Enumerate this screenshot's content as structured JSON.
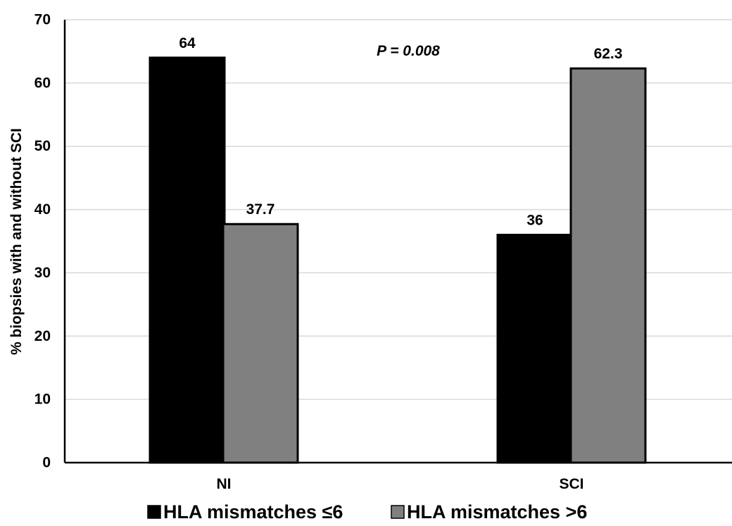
{
  "chart_data": {
    "type": "bar",
    "categories": [
      "NI",
      "SCI"
    ],
    "series": [
      {
        "name": "HLA mismatches ≤6",
        "values": [
          64,
          36
        ],
        "labels": [
          "64",
          "36"
        ],
        "color": "#000000"
      },
      {
        "name": "HLA mismatches >6",
        "values": [
          37.7,
          62.3
        ],
        "labels": [
          "37.7",
          "62.3"
        ],
        "color": "#808080"
      }
    ],
    "ylabel": "% biopsies with and without SCI",
    "xlabel": "",
    "ylim": [
      0,
      70
    ],
    "yticks": [
      "0",
      "10",
      "20",
      "30",
      "40",
      "50",
      "60",
      "70"
    ],
    "annotation": "P = 0.008",
    "grid": true,
    "legend": "bottom-center"
  }
}
